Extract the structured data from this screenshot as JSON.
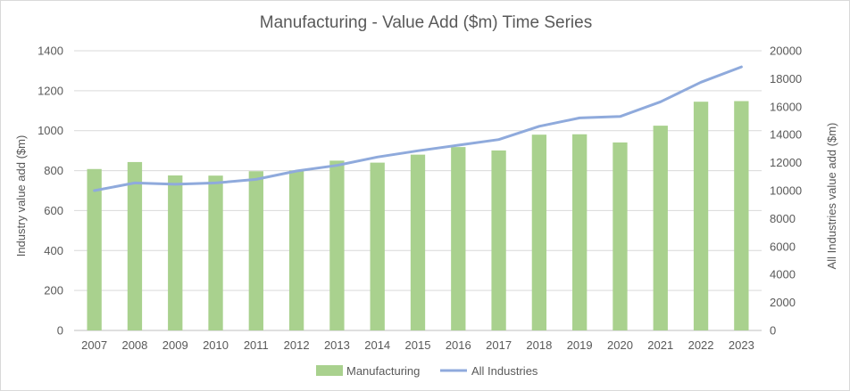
{
  "chart_data": {
    "type": "bar",
    "title": "Manufacturing - Value Add ($m) Time Series",
    "categories": [
      "2007",
      "2008",
      "2009",
      "2010",
      "2011",
      "2012",
      "2013",
      "2014",
      "2015",
      "2016",
      "2017",
      "2018",
      "2019",
      "2020",
      "2021",
      "2022",
      "2023"
    ],
    "series": [
      {
        "name": "Manufacturing",
        "type": "bar",
        "axis": "left",
        "color": "#a9d18e",
        "values": [
          808,
          843,
          776,
          775,
          797,
          801,
          850,
          840,
          880,
          918,
          901,
          980,
          982,
          941,
          1025,
          1145,
          1148
        ]
      },
      {
        "name": "All Industries",
        "type": "line",
        "axis": "right",
        "color": "#8faadc",
        "values": [
          10000,
          10550,
          10450,
          10550,
          10800,
          11400,
          11800,
          12400,
          12850,
          13250,
          13650,
          14600,
          15200,
          15300,
          16350,
          17750,
          18850
        ]
      }
    ],
    "ylabel": "Industry value add ($m)",
    "ylabel_right": "All Industries value add ($m)",
    "ylim": [
      0,
      1400
    ],
    "yticks": [
      "0",
      "200",
      "400",
      "600",
      "800",
      "1000",
      "1200",
      "1400"
    ],
    "ylim_right": [
      0,
      20000
    ],
    "yticks_right": [
      "0",
      "2000",
      "4000",
      "6000",
      "8000",
      "10000",
      "12000",
      "14000",
      "16000",
      "18000",
      "20000"
    ],
    "grid": true,
    "legend_position": "bottom"
  }
}
